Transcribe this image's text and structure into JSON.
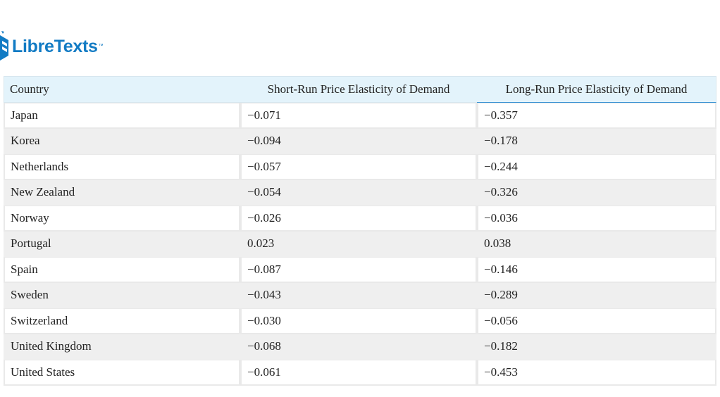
{
  "logo": {
    "text": "LibreTexts",
    "trademark": "™",
    "brand_color": "#127bc4"
  },
  "table": {
    "headers": [
      "Country",
      "Short-Run Price Elasticity of Demand",
      "Long-Run Price Elasticity of Demand"
    ],
    "header_background": "#e3f3fb",
    "alt_row_background": "#efefef",
    "rows": [
      [
        "Japan",
        "−0.071",
        "−0.357"
      ],
      [
        "Korea",
        "−0.094",
        "−0.178"
      ],
      [
        "Netherlands",
        "−0.057",
        "−0.244"
      ],
      [
        "New Zealand",
        "−0.054",
        "−0.326"
      ],
      [
        "Norway",
        "−0.026",
        "−0.036"
      ],
      [
        "Portugal",
        "0.023",
        "0.038"
      ],
      [
        "Spain",
        "−0.087",
        "−0.146"
      ],
      [
        "Sweden",
        "−0.043",
        "−0.289"
      ],
      [
        "Switzerland",
        "−0.030",
        "−0.056"
      ],
      [
        "United Kingdom",
        "−0.068",
        "−0.182"
      ],
      [
        "United States",
        "−0.061",
        "−0.453"
      ]
    ]
  }
}
